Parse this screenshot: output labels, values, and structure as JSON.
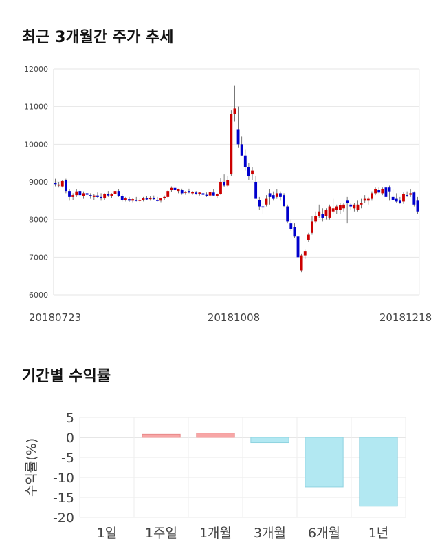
{
  "sections": {
    "price_title": "최근 3개월간 주가 추세",
    "return_title": "기간별 수익률"
  },
  "chart_data": [
    {
      "type": "candlestick",
      "title": "최근 3개월간 주가 추세",
      "ylim": [
        6000,
        12000
      ],
      "yticks": [
        "12000",
        "11000",
        "10000",
        "9000",
        "8000",
        "7000",
        "6000"
      ],
      "xtick_labels": [
        "20180723",
        "20181008",
        "20181218"
      ],
      "grid": true,
      "colors": {
        "up": "#cc0000",
        "down": "#0000cc",
        "wick": "#555555",
        "grid": "#e6e6e6"
      },
      "candles": [
        [
          8980,
          9080,
          8880,
          8940
        ],
        [
          8900,
          9000,
          8850,
          8930
        ],
        [
          8880,
          9050,
          8850,
          9020
        ],
        [
          9040,
          9080,
          8700,
          8760
        ],
        [
          8760,
          8800,
          8500,
          8600
        ],
        [
          8600,
          8700,
          8520,
          8650
        ],
        [
          8650,
          8800,
          8600,
          8750
        ],
        [
          8760,
          8800,
          8600,
          8650
        ],
        [
          8620,
          8750,
          8550,
          8700
        ],
        [
          8700,
          8780,
          8620,
          8660
        ],
        [
          8650,
          8700,
          8550,
          8620
        ],
        [
          8600,
          8680,
          8520,
          8640
        ],
        [
          8640,
          8720,
          8580,
          8600
        ],
        [
          8600,
          8700,
          8500,
          8560
        ],
        [
          8560,
          8700,
          8520,
          8680
        ],
        [
          8680,
          8760,
          8600,
          8640
        ],
        [
          8620,
          8700,
          8580,
          8680
        ],
        [
          8680,
          8800,
          8620,
          8760
        ],
        [
          8760,
          8800,
          8600,
          8620
        ],
        [
          8620,
          8680,
          8480,
          8520
        ],
        [
          8520,
          8600,
          8480,
          8560
        ],
        [
          8540,
          8600,
          8470,
          8500
        ],
        [
          8500,
          8580,
          8460,
          8540
        ],
        [
          8520,
          8600,
          8480,
          8500
        ],
        [
          8500,
          8560,
          8460,
          8520
        ],
        [
          8520,
          8600,
          8480,
          8560
        ],
        [
          8560,
          8620,
          8520,
          8540
        ],
        [
          8540,
          8620,
          8500,
          8580
        ],
        [
          8580,
          8640,
          8520,
          8540
        ],
        [
          8520,
          8600,
          8480,
          8500
        ],
        [
          8500,
          8580,
          8460,
          8560
        ],
        [
          8560,
          8640,
          8520,
          8600
        ],
        [
          8600,
          8780,
          8580,
          8760
        ],
        [
          8780,
          8880,
          8740,
          8840
        ],
        [
          8840,
          8880,
          8740,
          8780
        ],
        [
          8760,
          8820,
          8700,
          8800
        ],
        [
          8780,
          8820,
          8660,
          8700
        ],
        [
          8720,
          8760,
          8660,
          8740
        ],
        [
          8760,
          8820,
          8700,
          8720
        ],
        [
          8700,
          8760,
          8660,
          8740
        ],
        [
          8720,
          8760,
          8660,
          8680
        ],
        [
          8680,
          8740,
          8640,
          8720
        ],
        [
          8700,
          8740,
          8640,
          8660
        ],
        [
          8660,
          8720,
          8600,
          8640
        ],
        [
          8640,
          8780,
          8600,
          8740
        ],
        [
          8720,
          8800,
          8620,
          8640
        ],
        [
          8620,
          8700,
          8560,
          8680
        ],
        [
          8680,
          9100,
          8660,
          9000
        ],
        [
          9000,
          9200,
          8860,
          8900
        ],
        [
          8900,
          9150,
          8860,
          9050
        ],
        [
          9200,
          10900,
          9150,
          10800
        ],
        [
          10800,
          11550,
          10600,
          10950
        ],
        [
          10400,
          11000,
          9900,
          10000
        ],
        [
          10000,
          10200,
          9700,
          9700
        ],
        [
          9700,
          9850,
          9300,
          9400
        ],
        [
          9400,
          9500,
          9050,
          9150
        ],
        [
          9200,
          9400,
          9050,
          9300
        ],
        [
          9000,
          9150,
          8550,
          8550
        ],
        [
          8520,
          8600,
          8250,
          8350
        ],
        [
          8350,
          8450,
          8150,
          8320
        ],
        [
          8400,
          8650,
          8350,
          8550
        ],
        [
          8700,
          8800,
          8400,
          8600
        ],
        [
          8650,
          8750,
          8500,
          8550
        ],
        [
          8600,
          8800,
          8550,
          8700
        ],
        [
          8700,
          8750,
          8500,
          8600
        ],
        [
          8650,
          8700,
          8320,
          8360
        ],
        [
          8350,
          8400,
          7900,
          7950
        ],
        [
          7900,
          8000,
          7700,
          7750
        ],
        [
          7800,
          7900,
          7500,
          7550
        ],
        [
          7550,
          7650,
          6950,
          7000
        ],
        [
          6650,
          7100,
          6600,
          7050
        ],
        [
          7050,
          7200,
          6950,
          7150
        ],
        [
          7450,
          7650,
          7400,
          7600
        ],
        [
          7650,
          8100,
          7600,
          7950
        ],
        [
          7950,
          8200,
          7900,
          8100
        ],
        [
          8100,
          8400,
          8050,
          8200
        ],
        [
          8150,
          8300,
          7950,
          8050
        ],
        [
          8100,
          8300,
          8000,
          8250
        ],
        [
          8050,
          8400,
          8000,
          8350
        ],
        [
          8200,
          8550,
          8150,
          8300
        ],
        [
          8250,
          8400,
          8150,
          8350
        ],
        [
          8250,
          8450,
          8150,
          8380
        ],
        [
          8300,
          8450,
          8200,
          8400
        ],
        [
          8500,
          8600,
          7900,
          8450
        ],
        [
          8400,
          8450,
          8250,
          8350
        ],
        [
          8300,
          8450,
          8200,
          8400
        ],
        [
          8250,
          8500,
          8200,
          8400
        ],
        [
          8400,
          8550,
          8300,
          8450
        ],
        [
          8500,
          8650,
          8450,
          8550
        ],
        [
          8500,
          8600,
          8400,
          8550
        ],
        [
          8550,
          8750,
          8500,
          8700
        ],
        [
          8700,
          8850,
          8650,
          8800
        ],
        [
          8780,
          8850,
          8700,
          8720
        ],
        [
          8700,
          8850,
          8650,
          8800
        ],
        [
          8850,
          8950,
          8580,
          8600
        ],
        [
          8850,
          8900,
          8500,
          8750
        ],
        [
          8600,
          8800,
          8550,
          8520
        ],
        [
          8550,
          8700,
          8450,
          8480
        ],
        [
          8500,
          8600,
          8420,
          8450
        ],
        [
          8480,
          8720,
          8420,
          8680
        ],
        [
          8650,
          8750,
          8600,
          8620
        ],
        [
          8660,
          8800,
          8600,
          8700
        ],
        [
          8720,
          8750,
          8350,
          8400
        ],
        [
          8500,
          8600,
          8150,
          8200
        ]
      ]
    },
    {
      "type": "bar",
      "title": "기간별 수익률",
      "categories": [
        "1일",
        "1주일",
        "1개월",
        "3개월",
        "6개월",
        "1년"
      ],
      "values": [
        0,
        0.8,
        1.1,
        -1.3,
        -12.4,
        -17.2
      ],
      "ylabel": "수익률(%)",
      "ylim": [
        -20,
        5
      ],
      "yticks": [
        "5",
        "0",
        "-5",
        "-10",
        "-15",
        "-20"
      ],
      "grid": true,
      "colors": {
        "positive": "#f7a6a6",
        "negative": "#b2e8f2",
        "positive_edge": "#e88888",
        "negative_edge": "#8fd3e0"
      }
    }
  ]
}
